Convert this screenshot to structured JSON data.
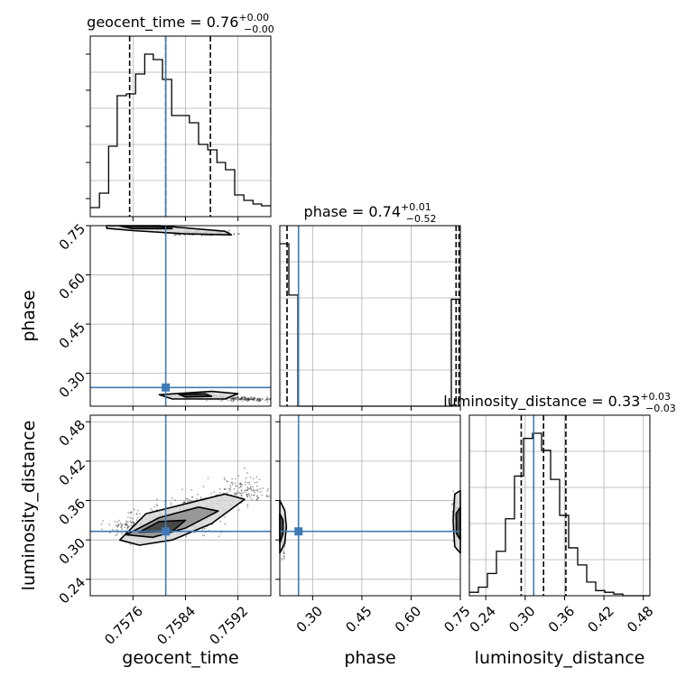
{
  "chart_data": {
    "type": "corner",
    "parameters": [
      "geocent_time",
      "phase",
      "luminosity_distance"
    ],
    "colors": {
      "data": "#000000",
      "truth": "#3f7ab5",
      "grid": "#b0b0b0"
    },
    "titles": [
      {
        "param": "geocent_time",
        "prefix": "geocent_time = ",
        "value": "0.76",
        "plus": "+0.00",
        "minus": "−0.00"
      },
      {
        "param": "phase",
        "prefix": "phase = ",
        "value": "0.74",
        "plus": "+0.01",
        "minus": "−0.52"
      },
      {
        "param": "luminosity_distance",
        "prefix": "luminosity_distance = ",
        "value": "0.33",
        "plus": "+0.03",
        "minus": "−0.03"
      }
    ],
    "axes": {
      "geocent_time": {
        "range": [
          0.75695,
          0.7597
        ],
        "ticks": [
          0.7576,
          0.7584,
          0.7592
        ],
        "tick_labels": [
          "0.7576",
          "0.7584",
          "0.7592"
        ],
        "label": "geocent_time"
      },
      "phase": {
        "range": [
          0.2,
          0.75
        ],
        "ticks": [
          0.3,
          0.45,
          0.6,
          0.75
        ],
        "tick_labels": [
          "0.30",
          "0.45",
          "0.60",
          "0.75"
        ],
        "label": "phase"
      },
      "luminosity_distance": {
        "range": [
          0.215,
          0.49
        ],
        "ticks": [
          0.24,
          0.3,
          0.36,
          0.42,
          0.48
        ],
        "tick_labels": [
          "0.24",
          "0.30",
          "0.36",
          "0.42",
          "0.48"
        ],
        "label": "luminosity_distance"
      }
    },
    "truths": {
      "geocent_time": 0.7581,
      "phase": 0.257,
      "luminosity_distance": 0.313
    },
    "quantiles": {
      "geocent_time": [
        0.75755,
        0.7581,
        0.75878
      ],
      "phase": [
        0.222,
        0.737,
        0.746
      ],
      "luminosity_distance": [
        0.294,
        0.328,
        0.362
      ]
    },
    "histograms": {
      "geocent_time": {
        "edges": [
          0.75695,
          0.75709,
          0.75723,
          0.75736,
          0.7575,
          0.75764,
          0.75778,
          0.75791,
          0.75805,
          0.75819,
          0.75833,
          0.75846,
          0.7586,
          0.75874,
          0.75888,
          0.75901,
          0.75915,
          0.75929,
          0.75943,
          0.75956,
          0.7597
        ],
        "counts": [
          0.05,
          0.13,
          0.39,
          0.67,
          0.68,
          0.79,
          0.9,
          0.87,
          0.76,
          0.56,
          0.56,
          0.52,
          0.4,
          0.37,
          0.3,
          0.26,
          0.12,
          0.09,
          0.07,
          0.06
        ]
      },
      "phase": {
        "edges": [
          0.2,
          0.2275,
          0.255,
          0.2825,
          0.31,
          0.3375,
          0.365,
          0.3925,
          0.42,
          0.4475,
          0.475,
          0.5025,
          0.53,
          0.5575,
          0.585,
          0.6125,
          0.64,
          0.6675,
          0.695,
          0.7225,
          0.75
        ],
        "counts": [
          0.38,
          0.26,
          0,
          0,
          0,
          0,
          0,
          0,
          0,
          0,
          0,
          0,
          0,
          0,
          0,
          0,
          0,
          0,
          0,
          0.25
        ]
      },
      "luminosity_distance": {
        "edges": [
          0.215,
          0.22875,
          0.2425,
          0.25625,
          0.27,
          0.28375,
          0.2975,
          0.31125,
          0.325,
          0.33875,
          0.3525,
          0.36625,
          0.38,
          0.39375,
          0.4075,
          0.42125,
          0.435,
          0.44875,
          0.4625,
          0.47625,
          0.49
        ],
        "counts": [
          0.02,
          0.05,
          0.13,
          0.26,
          0.45,
          0.7,
          0.92,
          0.95,
          0.85,
          0.68,
          0.47,
          0.28,
          0.18,
          0.08,
          0.03,
          0.02,
          0.01,
          0,
          0,
          0
        ]
      }
    },
    "density_2d": [
      {
        "x": "geocent_time",
        "y": "phase",
        "clusters": [
          {
            "center": [
              0.7577,
              0.745
            ],
            "spread": [
              0.00035,
              0.006
            ]
          },
          {
            "center": [
              0.7586,
              0.727
            ],
            "spread": [
              0.0005,
              0.006
            ]
          },
          {
            "center": [
              0.7586,
              0.232
            ],
            "spread": [
              0.0004,
              0.006
            ]
          },
          {
            "center": [
              0.7593,
              0.222
            ],
            "spread": [
              0.0004,
              0.005
            ]
          }
        ],
        "contours": [
          {
            "level": "outer",
            "points": [
              [
                0.7572,
                0.752
              ],
              [
                0.758,
                0.75
              ],
              [
                0.759,
                0.733
              ],
              [
                0.7591,
                0.722
              ],
              [
                0.7584,
                0.725
              ],
              [
                0.7576,
                0.735
              ],
              [
                0.7572,
                0.742
              ]
            ]
          },
          {
            "level": "inner",
            "points": [
              [
                0.7574,
                0.749
              ],
              [
                0.758,
                0.748
              ],
              [
                0.7582,
                0.741
              ],
              [
                0.7576,
                0.741
              ]
            ]
          },
          {
            "level": "outer",
            "points": [
              [
                0.758,
                0.235
              ],
              [
                0.7588,
                0.245
              ],
              [
                0.7592,
                0.238
              ],
              [
                0.759,
                0.222
              ],
              [
                0.7582,
                0.222
              ]
            ]
          },
          {
            "level": "inner",
            "points": [
              [
                0.7583,
                0.236
              ],
              [
                0.7587,
                0.238
              ],
              [
                0.7588,
                0.23
              ],
              [
                0.7584,
                0.228
              ]
            ]
          }
        ]
      },
      {
        "x": "geocent_time",
        "y": "luminosity_distance",
        "clusters": [
          {
            "center": [
              0.7576,
              0.318
            ],
            "spread": [
              0.0003,
              0.014
            ]
          },
          {
            "center": [
              0.7581,
              0.335
            ],
            "spread": [
              0.0004,
              0.015
            ]
          },
          {
            "center": [
              0.7587,
              0.352
            ],
            "spread": [
              0.0005,
              0.016
            ]
          },
          {
            "center": [
              0.7593,
              0.375
            ],
            "spread": [
              0.0004,
              0.018
            ]
          },
          {
            "center": [
              0.7584,
              0.32
            ],
            "spread": [
              0.0004,
              0.012
            ]
          }
        ],
        "contours": [
          {
            "level": "outer",
            "points": [
              [
                0.7574,
                0.3
              ],
              [
                0.7578,
                0.34
              ],
              [
                0.759,
                0.37
              ],
              [
                0.7593,
                0.362
              ],
              [
                0.7588,
                0.325
              ],
              [
                0.7582,
                0.3
              ],
              [
                0.7577,
                0.292
              ]
            ]
          },
          {
            "level": "mid",
            "points": [
              [
                0.7575,
                0.308
              ],
              [
                0.758,
                0.334
              ],
              [
                0.7586,
                0.35
              ],
              [
                0.7589,
                0.344
              ],
              [
                0.7584,
                0.318
              ],
              [
                0.7579,
                0.304
              ]
            ]
          },
          {
            "level": "inner",
            "points": [
              [
                0.7577,
                0.312
              ],
              [
                0.758,
                0.328
              ],
              [
                0.7584,
                0.33
              ],
              [
                0.7582,
                0.313
              ]
            ]
          }
        ]
      },
      {
        "x": "phase",
        "y": "luminosity_distance",
        "clusters": [
          {
            "center": [
              0.21,
              0.31
            ],
            "spread": [
              0.008,
              0.025
            ]
          },
          {
            "center": [
              0.738,
              0.33
            ],
            "spread": [
              0.008,
              0.03
            ]
          }
        ],
        "contours": [
          {
            "level": "outer",
            "points": [
              [
                0.2,
                0.28
              ],
              [
                0.215,
                0.295
              ],
              [
                0.22,
                0.32
              ],
              [
                0.215,
                0.345
              ],
              [
                0.2,
                0.36
              ]
            ]
          },
          {
            "level": "inner",
            "points": [
              [
                0.2,
                0.295
              ],
              [
                0.21,
                0.31
              ],
              [
                0.21,
                0.33
              ],
              [
                0.2,
                0.34
              ]
            ]
          },
          {
            "level": "outer",
            "points": [
              [
                0.75,
                0.28
              ],
              [
                0.733,
                0.29
              ],
              [
                0.728,
                0.33
              ],
              [
                0.733,
                0.37
              ],
              [
                0.75,
                0.375
              ]
            ]
          },
          {
            "level": "inner",
            "points": [
              [
                0.75,
                0.3
              ],
              [
                0.738,
                0.31
              ],
              [
                0.737,
                0.34
              ],
              [
                0.75,
                0.35
              ]
            ]
          }
        ]
      }
    ],
    "grid": true,
    "legend": "none"
  }
}
